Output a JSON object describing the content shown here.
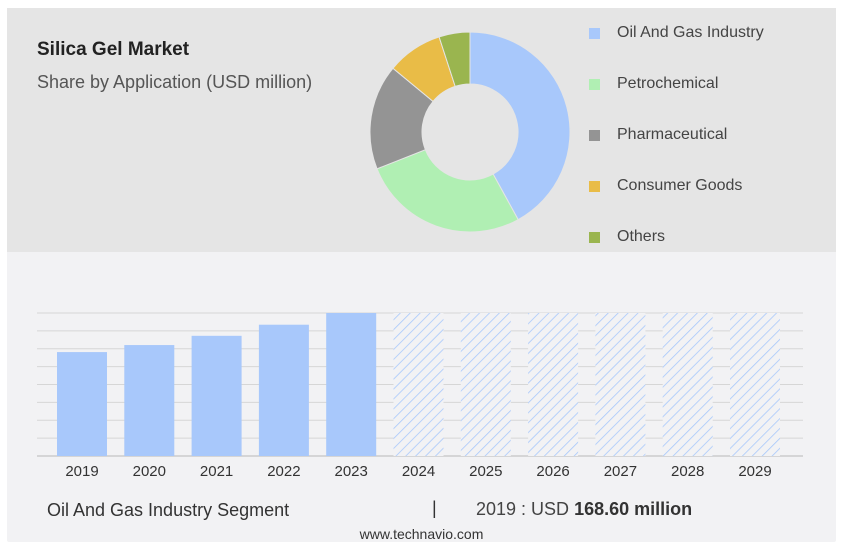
{
  "header": {
    "title": "Silica Gel Market",
    "subtitle": "Share by Application (USD million)"
  },
  "pie_chart": {
    "type": "pie",
    "segments": [
      {
        "label": "Oil And Gas Industry",
        "share": 42,
        "color": "#a8c8fb"
      },
      {
        "label": "Petrochemical",
        "share": 27,
        "color": "#b0efb3"
      },
      {
        "label": "Pharmaceutical",
        "share": 17,
        "color": "#949494"
      },
      {
        "label": "Consumer Goods",
        "share": 9,
        "color": "#e9bc47"
      },
      {
        "label": "Others",
        "share": 5,
        "color": "#9ab54f"
      }
    ]
  },
  "chart_data": {
    "type": "bar",
    "categories": [
      "2019",
      "2020",
      "2021",
      "2022",
      "2023",
      "2024",
      "2025",
      "2026",
      "2027",
      "2028",
      "2029"
    ],
    "values": [
      168.6,
      180,
      195,
      213,
      232,
      null,
      null,
      null,
      null,
      null,
      null
    ],
    "forecast_categories": [
      "2024",
      "2025",
      "2026",
      "2027",
      "2028",
      "2029"
    ],
    "bar_color": "#a8c8fb",
    "ylim": [
      0,
      232
    ],
    "grid": true
  },
  "footer": {
    "segment_label": "Oil And Gas Industry Segment",
    "separator": "|",
    "year_prefix": "2019 : USD ",
    "value_text": "168.60 million",
    "watermark": "www.technavio.com"
  }
}
